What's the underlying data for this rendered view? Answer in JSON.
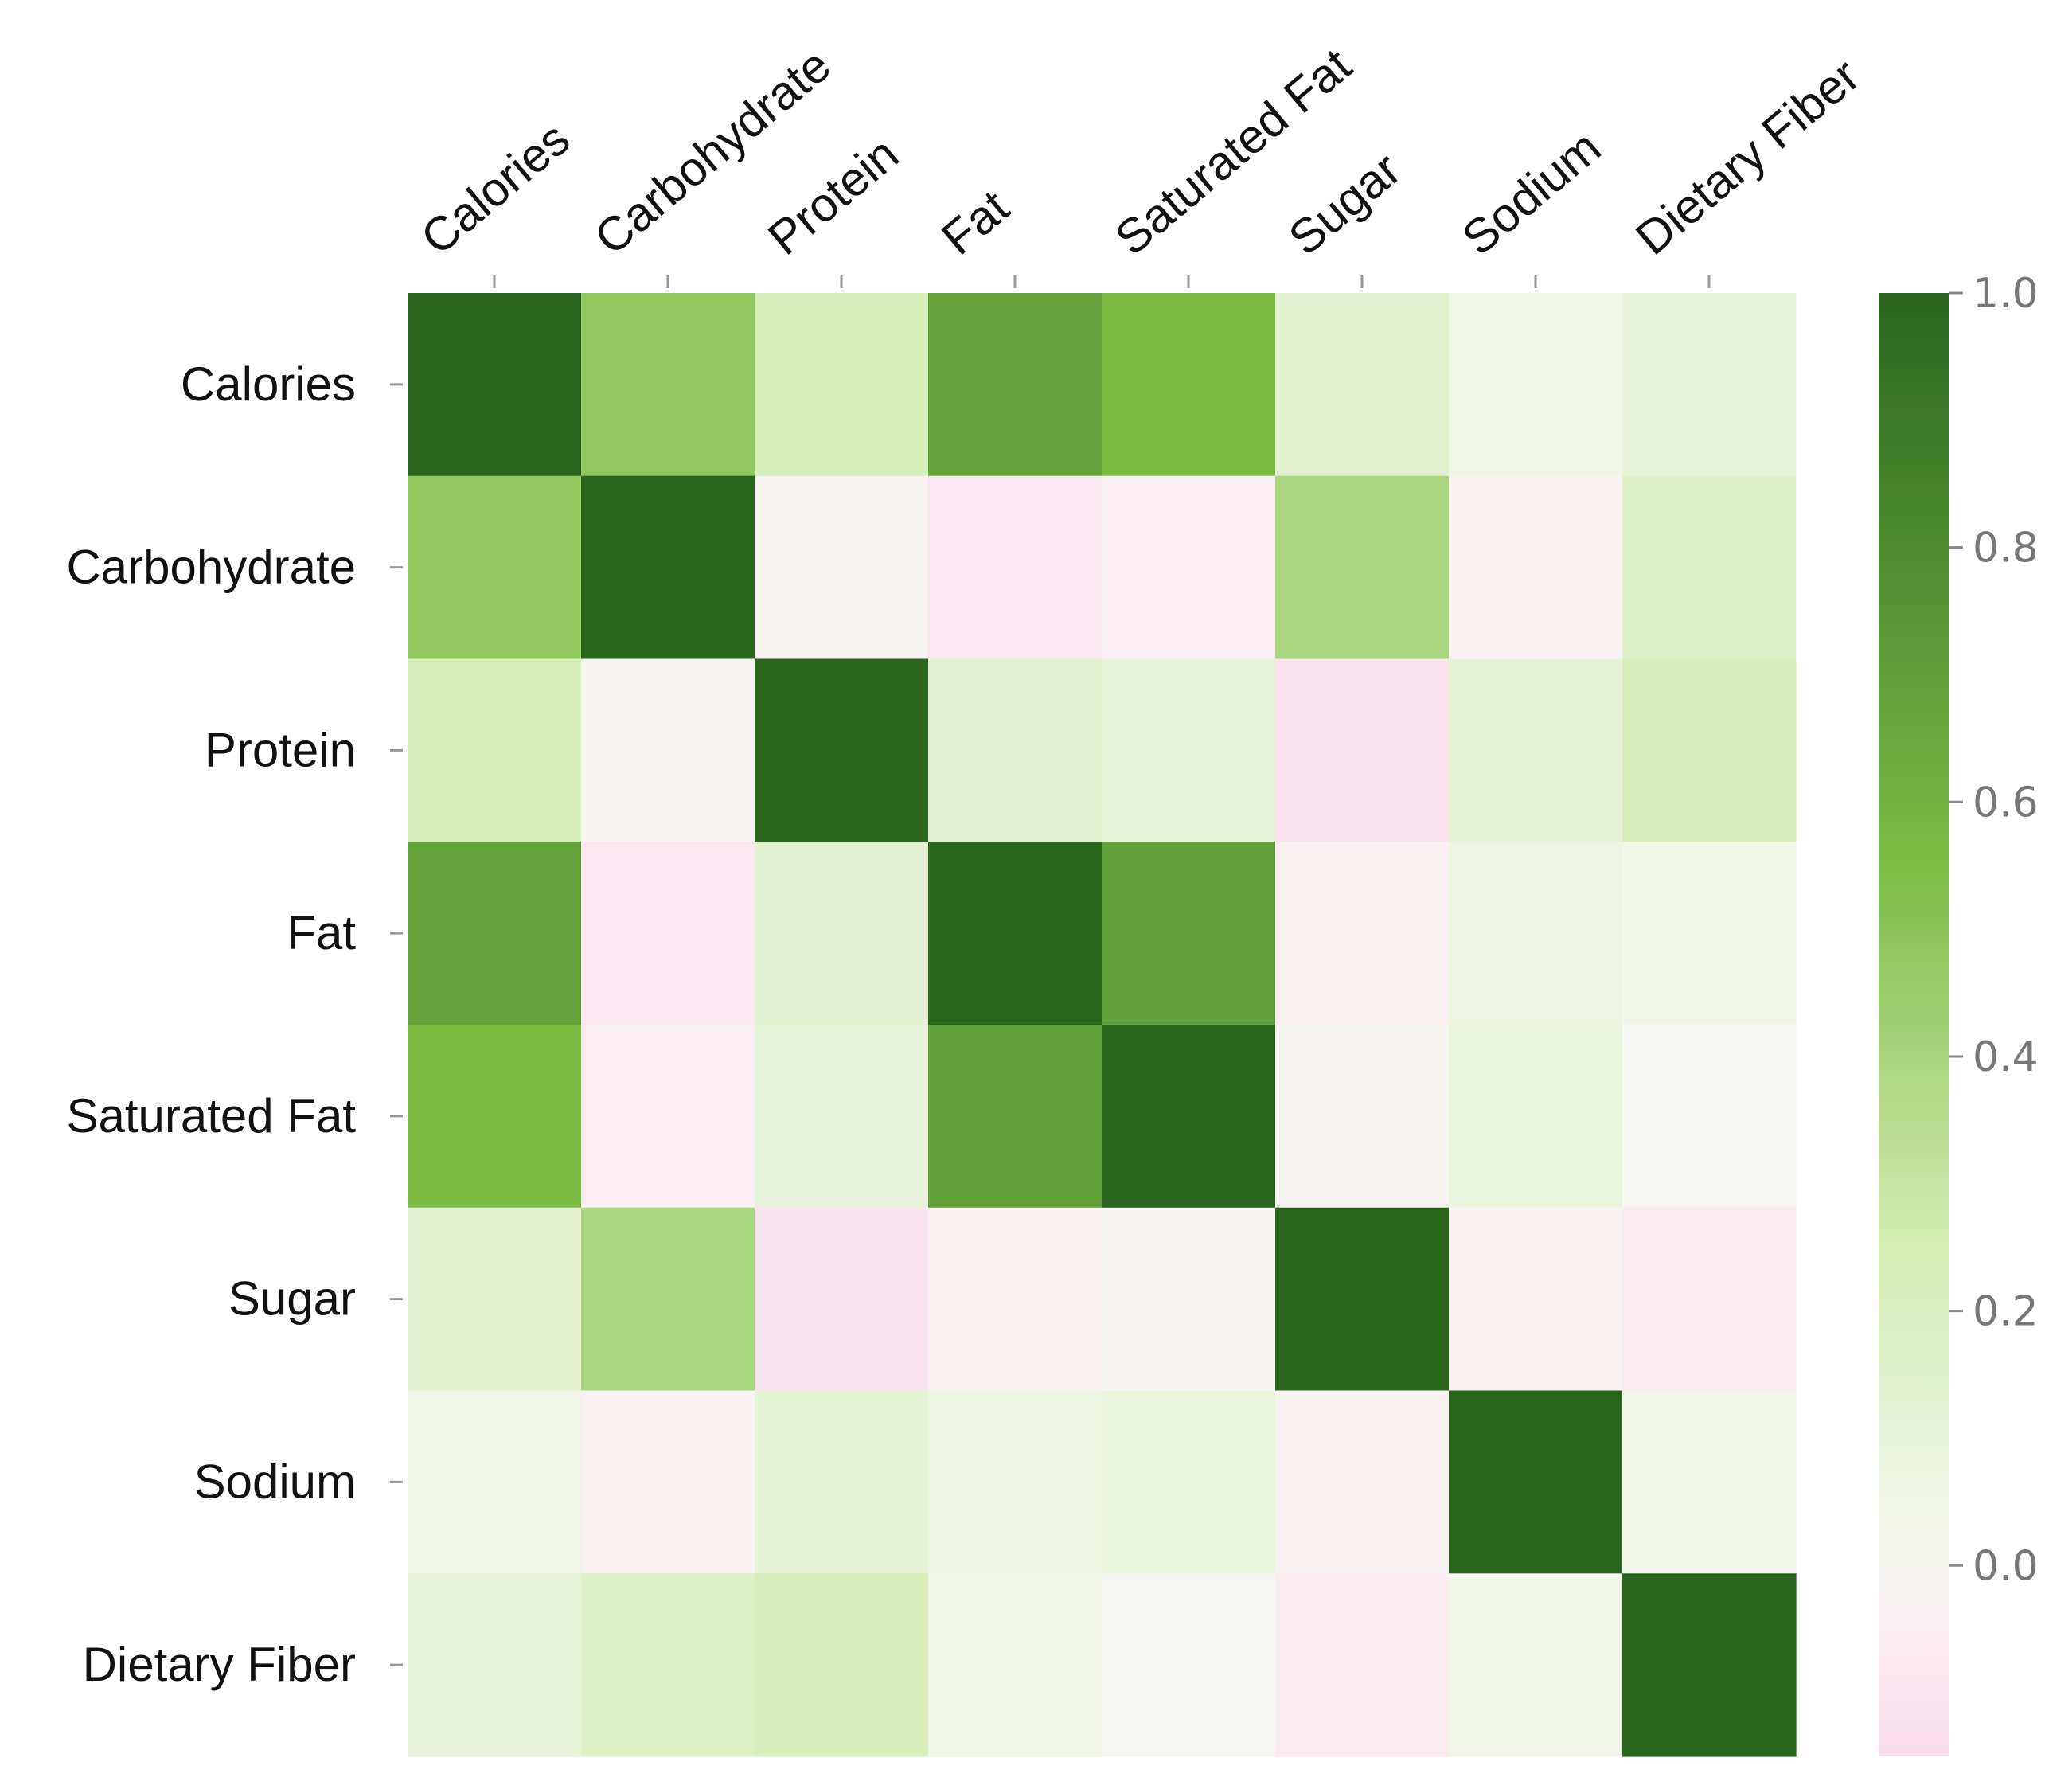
{
  "chart_data": {
    "type": "heatmap",
    "title": "",
    "row_labels": [
      "Calories",
      "Carbohydrate",
      "Protein",
      "Fat",
      "Saturated Fat",
      "Sugar",
      "Sodium",
      "Dietary Fiber"
    ],
    "col_labels": [
      "Calories",
      "Carbohydrate",
      "Protein",
      "Fat",
      "Saturated Fat",
      "Sugar",
      "Sodium",
      "Dietary Fiber"
    ],
    "values": [
      [
        1.0,
        0.48,
        0.24,
        0.68,
        0.55,
        0.14,
        0.05,
        0.1
      ],
      [
        0.48,
        1.0,
        -0.02,
        -0.08,
        -0.05,
        0.39,
        -0.03,
        0.17
      ],
      [
        0.24,
        -0.02,
        1.0,
        0.13,
        0.1,
        -0.11,
        0.12,
        0.21
      ],
      [
        0.68,
        -0.08,
        0.13,
        1.0,
        0.69,
        -0.04,
        0.07,
        0.04
      ],
      [
        0.55,
        -0.05,
        0.1,
        0.69,
        1.0,
        -0.01,
        0.09,
        0.0
      ],
      [
        0.14,
        0.39,
        -0.11,
        -0.04,
        -0.01,
        1.0,
        -0.03,
        -0.06
      ],
      [
        0.05,
        -0.03,
        0.12,
        0.07,
        0.09,
        -0.03,
        1.0,
        0.03
      ],
      [
        0.1,
        0.17,
        0.21,
        0.04,
        0.0,
        -0.06,
        0.03,
        1.0
      ]
    ],
    "colorbar": {
      "min": -0.15,
      "max": 1.0,
      "ticks": [
        1.0,
        0.8,
        0.6,
        0.4,
        0.2,
        0.0
      ],
      "tick_labels": [
        "1.0",
        "0.8",
        "0.6",
        "0.4",
        "0.2",
        "0.0"
      ]
    },
    "colors": {
      "negative": "#fbdcec",
      "neutral": "#f6f6f2",
      "low_positive": "#d4edb3",
      "mid_positive": "#7cbc45",
      "high_positive": "#2a661d"
    }
  }
}
